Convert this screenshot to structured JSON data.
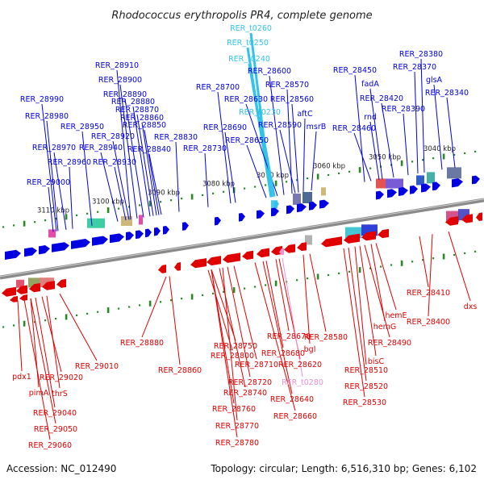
{
  "title": "Rhodococcus erythropolis PR4, complete genome",
  "footer": {
    "accession": "Accession: NC_012490",
    "topology": "Topology: circular; Length: 6,516,310 bp; Genes: 6,102"
  },
  "colors": {
    "forward_strand": "#0000e0",
    "reverse_strand": "#e00000",
    "rna": "#33c3e8",
    "pseudo": "#f090d0",
    "backbone": "#8a8a8a",
    "tick": "#2a8a2a"
  },
  "scale_labels": [
    "3110 kbp",
    "3100 kbp",
    "3090 kbp",
    "3080 kbp",
    "3070 kbp",
    "3060 kbp",
    "3050 kbp",
    "3040 kbp"
  ],
  "top_labels": [
    {
      "text": "RER_t0260",
      "type": "rna"
    },
    {
      "text": "RER_t0250",
      "type": "rna"
    },
    {
      "text": "RER_t0240",
      "type": "rna"
    },
    {
      "text": "RER_28910",
      "type": "fwd"
    },
    {
      "text": "RER_28900",
      "type": "fwd"
    },
    {
      "text": "RER_28890",
      "type": "fwd"
    },
    {
      "text": "RER_28880",
      "type": "fwd"
    },
    {
      "text": "RER_28870",
      "type": "fwd"
    },
    {
      "text": "RER_28860",
      "type": "fwd"
    },
    {
      "text": "RER_28850",
      "type": "fwd"
    },
    {
      "text": "RER_28840",
      "type": "fwd"
    },
    {
      "text": "RER_28830",
      "type": "fwd"
    },
    {
      "text": "RER_28920",
      "type": "fwd"
    },
    {
      "text": "RER_28930",
      "type": "fwd"
    },
    {
      "text": "RER_28940",
      "type": "fwd"
    },
    {
      "text": "RER_28950",
      "type": "fwd"
    },
    {
      "text": "RER_28960",
      "type": "fwd"
    },
    {
      "text": "RER_28970",
      "type": "fwd"
    },
    {
      "text": "RER_28980",
      "type": "fwd"
    },
    {
      "text": "RER_28990",
      "type": "fwd"
    },
    {
      "text": "RER_29000",
      "type": "fwd"
    },
    {
      "text": "RER_28700",
      "type": "fwd"
    },
    {
      "text": "RER_28690",
      "type": "fwd"
    },
    {
      "text": "RER_28730",
      "type": "fwd"
    },
    {
      "text": "RER_28600",
      "type": "fwd"
    },
    {
      "text": "RER_28570",
      "type": "fwd"
    },
    {
      "text": "RER_28630",
      "type": "fwd"
    },
    {
      "text": "RER_28560",
      "type": "fwd"
    },
    {
      "text": "RER_t0230",
      "type": "rna"
    },
    {
      "text": "aftC",
      "type": "fwd"
    },
    {
      "text": "RER_28590",
      "type": "fwd"
    },
    {
      "text": "RER_28650",
      "type": "fwd"
    },
    {
      "text": "msrB",
      "type": "fwd"
    },
    {
      "text": "RER_28450",
      "type": "fwd"
    },
    {
      "text": "fadA",
      "type": "fwd"
    },
    {
      "text": "rnd",
      "type": "fwd"
    },
    {
      "text": "RER_28460",
      "type": "fwd"
    },
    {
      "text": "RER_28380",
      "type": "fwd"
    },
    {
      "text": "RER_28370",
      "type": "fwd"
    },
    {
      "text": "RER_28420",
      "type": "fwd"
    },
    {
      "text": "RER_28390",
      "type": "fwd"
    },
    {
      "text": "glsA",
      "type": "fwd"
    },
    {
      "text": "RER_28340",
      "type": "fwd"
    }
  ],
  "bottom_labels": [
    {
      "text": "RER_28410",
      "type": "rev"
    },
    {
      "text": "dxs",
      "type": "rev"
    },
    {
      "text": "RER_28400",
      "type": "rev"
    },
    {
      "text": "hemE",
      "type": "rev"
    },
    {
      "text": "hemG",
      "type": "rev"
    },
    {
      "text": "RER_28490",
      "type": "rev"
    },
    {
      "text": "bisC",
      "type": "rev"
    },
    {
      "text": "RER_28510",
      "type": "rev"
    },
    {
      "text": "RER_28520",
      "type": "rev"
    },
    {
      "text": "RER_28530",
      "type": "rev"
    },
    {
      "text": "RER_28580",
      "type": "rev"
    },
    {
      "text": "RER_28670",
      "type": "rev"
    },
    {
      "text": "RER_28680",
      "type": "rev"
    },
    {
      "text": "bgl",
      "type": "rev"
    },
    {
      "text": "RER_28620",
      "type": "rev"
    },
    {
      "text": "RER_t0280",
      "type": "pseudo"
    },
    {
      "text": "RER_28640",
      "type": "rev"
    },
    {
      "text": "RER_28660",
      "type": "rev"
    },
    {
      "text": "RER_28750",
      "type": "rev"
    },
    {
      "text": "RER_28800",
      "type": "rev"
    },
    {
      "text": "RER_28710",
      "type": "rev"
    },
    {
      "text": "RER_28720",
      "type": "rev"
    },
    {
      "text": "RER_28740",
      "type": "rev"
    },
    {
      "text": "RER_28760",
      "type": "rev"
    },
    {
      "text": "RER_28770",
      "type": "rev"
    },
    {
      "text": "RER_28780",
      "type": "rev"
    },
    {
      "text": "RER_28880",
      "type": "rev"
    },
    {
      "text": "RER_28860",
      "type": "rev"
    },
    {
      "text": "RER_29010",
      "type": "rev"
    },
    {
      "text": "pdx1",
      "type": "rev"
    },
    {
      "text": "RER_29020",
      "type": "rev"
    },
    {
      "text": "pimA",
      "type": "rev"
    },
    {
      "text": "thrS",
      "type": "rev"
    },
    {
      "text": "RER_29040",
      "type": "rev"
    },
    {
      "text": "RER_29050",
      "type": "rev"
    },
    {
      "text": "RER_29060",
      "type": "rev"
    }
  ]
}
